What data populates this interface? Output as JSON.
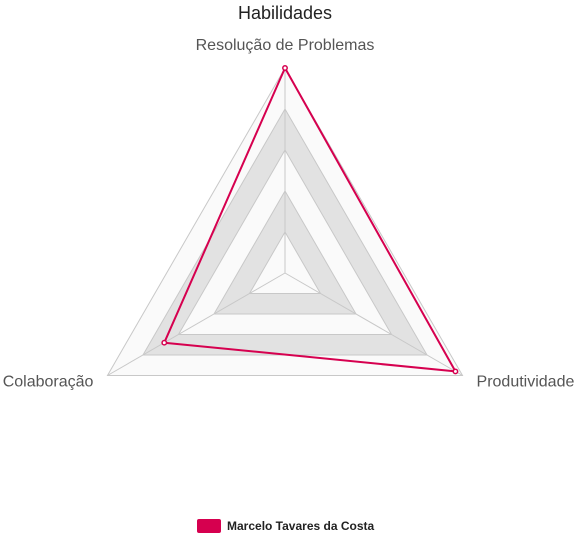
{
  "chart_data": {
    "type": "radar",
    "title": "Habilidades",
    "axes": [
      "Resolução de Problemas",
      "Produtividade",
      "Colaboração"
    ],
    "rlim": [
      0,
      5
    ],
    "ring_count": 5,
    "grid": true,
    "legend_position": "bottom",
    "series": [
      {
        "name": "Marcelo Tavares da Costa",
        "values": [
          5,
          4.8,
          3.4
        ],
        "color": "#d6004f"
      }
    ],
    "colors": {
      "band_shade": "#e2e2e2",
      "band_light": "#fafafa",
      "grid_line": "#c8c8c8"
    }
  }
}
